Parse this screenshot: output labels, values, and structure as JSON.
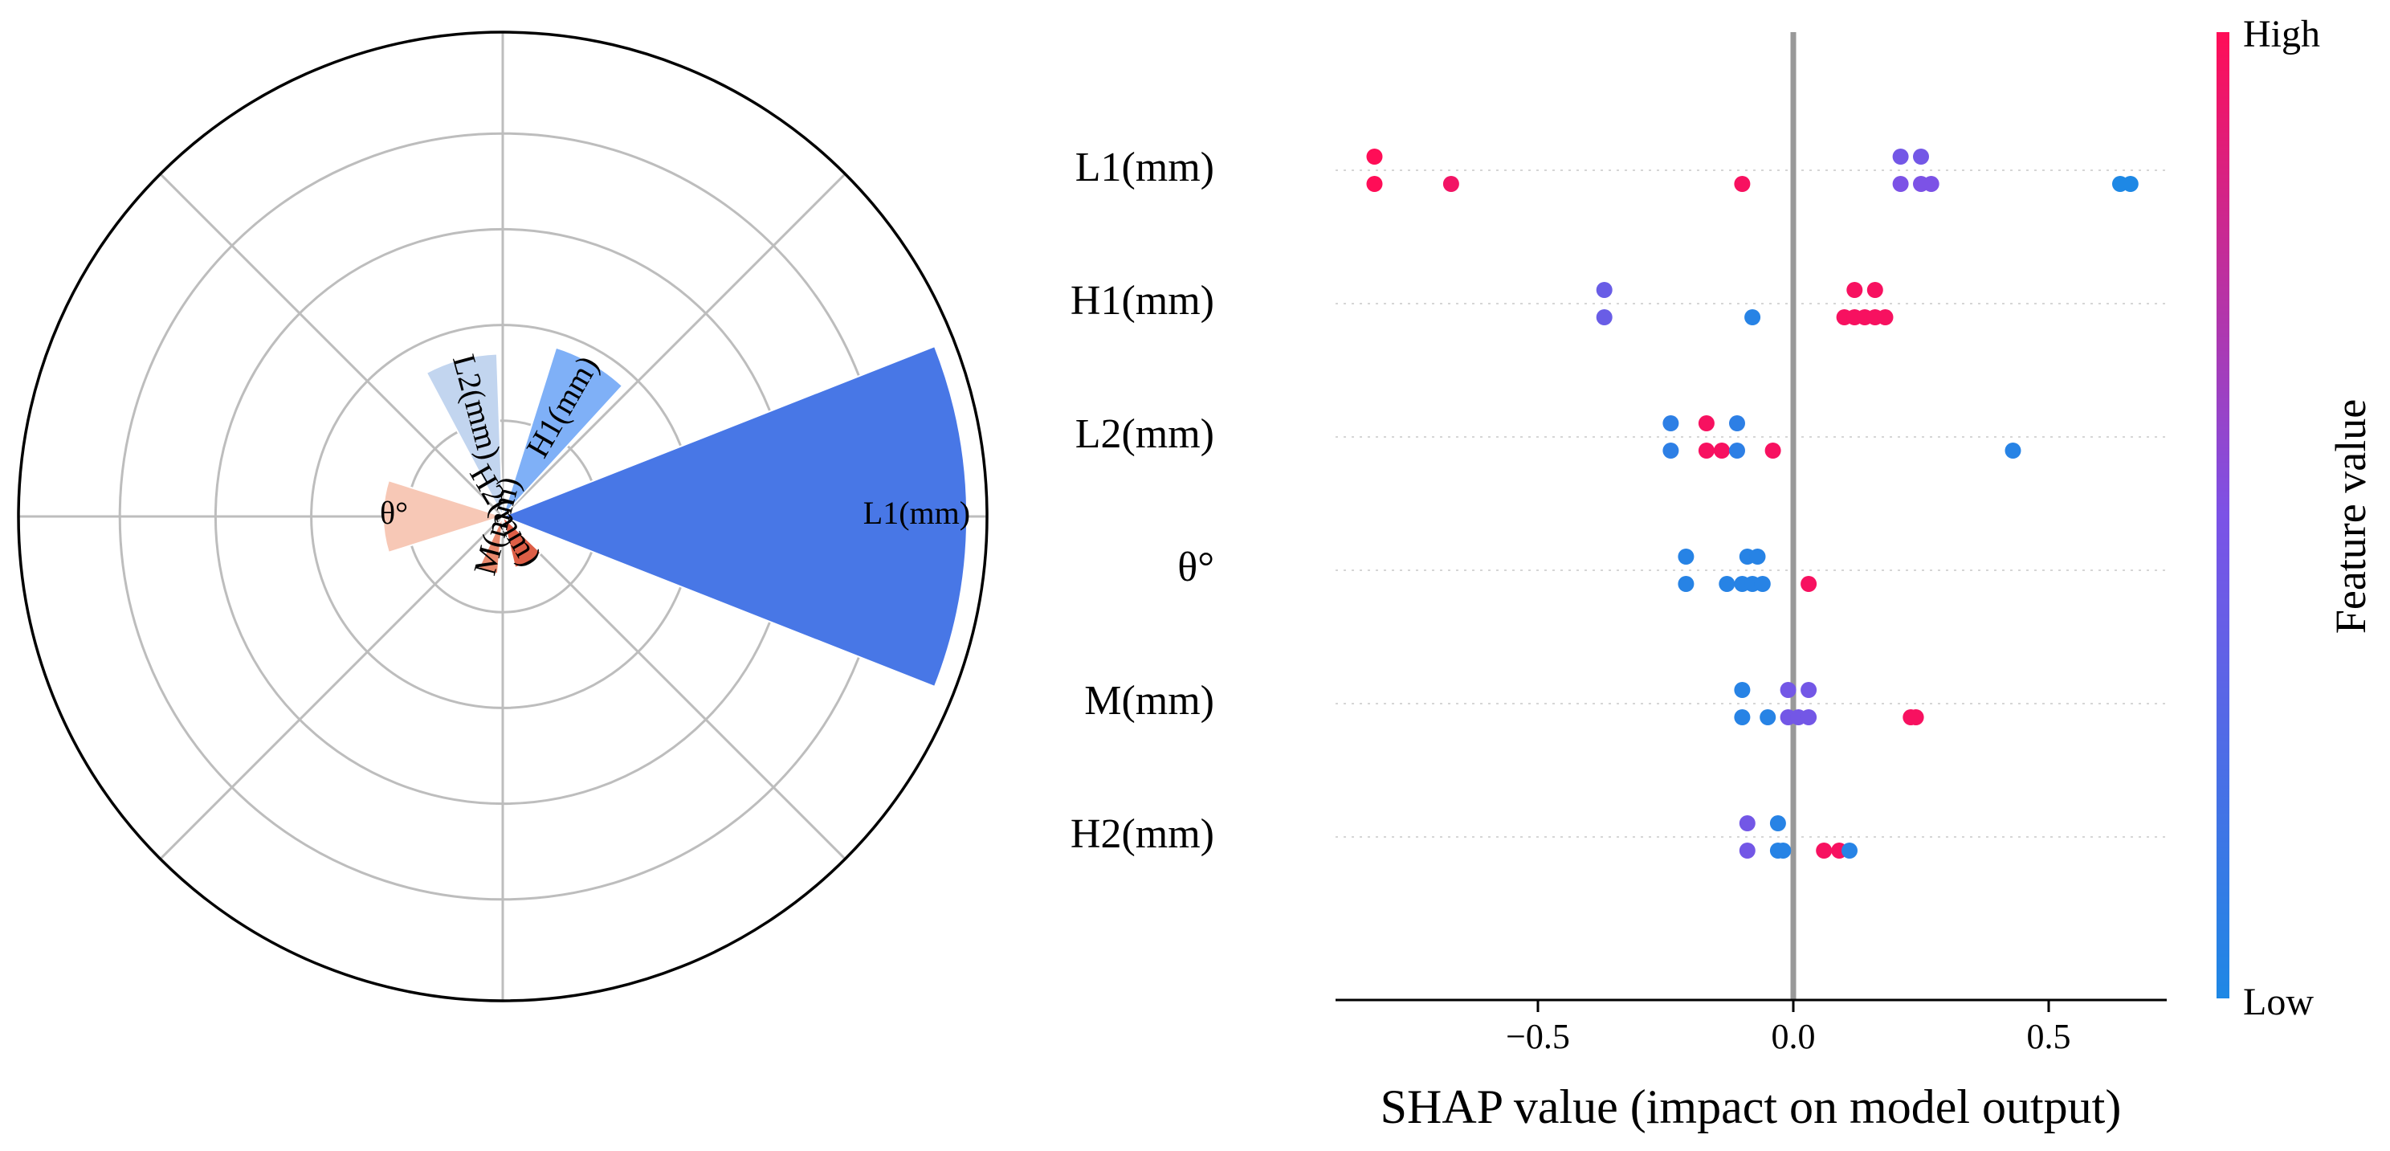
{
  "chart_data": [
    {
      "type": "polar-bar",
      "grid": true,
      "radial_max": 1.0,
      "radial_ticks": [
        0.2,
        0.4,
        0.6,
        0.8,
        1.0
      ],
      "spokes_deg": [
        0,
        45,
        90,
        135,
        180,
        225,
        270,
        315
      ],
      "categories": [
        "L1(mm)",
        "H2(mm)",
        "M(mm)",
        "θ°",
        "L2(mm)",
        "H1(mm)"
      ],
      "center_angle_deg": [
        0,
        300,
        255,
        180,
        105,
        60
      ],
      "width_deg": [
        43,
        33,
        20,
        35,
        26,
        25
      ],
      "values": [
        0.97,
        0.11,
        0.12,
        0.25,
        0.34,
        0.37
      ],
      "colors": [
        "#4877e6",
        "#dd5e46",
        "#e98a6e",
        "#f7c8b6",
        "#c2d5ef",
        "#7fb0f7"
      ]
    },
    {
      "type": "scatter",
      "title": "",
      "xlabel": "SHAP value (impact on model output)",
      "ylabel": "",
      "xlim": [
        -0.9,
        0.73
      ],
      "xticks": [
        -0.5,
        0.0,
        0.5
      ],
      "xtick_labels": [
        "−0.5",
        "0.0",
        "0.5"
      ],
      "grid": false,
      "categories": [
        "L1(mm)",
        "H1(mm)",
        "L2(mm)",
        "θ°",
        "M(mm)",
        "H2(mm)"
      ],
      "colorbar": {
        "label": "Feature value",
        "high": "High",
        "low": "Low",
        "colors": [
          "#ff0d57",
          "#7c52e6",
          "#1e88e5"
        ]
      },
      "series": [
        {
          "category": "L1(mm)",
          "points": [
            [
              -0.82,
              1,
              1.0
            ],
            [
              -0.82,
              -1,
              1.0
            ],
            [
              -0.67,
              -1,
              0.95
            ],
            [
              -0.1,
              -1,
              0.97
            ],
            [
              0.21,
              1,
              0.45
            ],
            [
              0.25,
              1,
              0.45
            ],
            [
              0.21,
              -1,
              0.5
            ],
            [
              0.25,
              -1,
              0.5
            ],
            [
              0.27,
              -1,
              0.5
            ],
            [
              0.64,
              -1,
              0.0
            ],
            [
              0.66,
              -1,
              0.0
            ]
          ]
        },
        {
          "category": "H1(mm)",
          "points": [
            [
              -0.37,
              1,
              0.4
            ],
            [
              -0.37,
              -1,
              0.4
            ],
            [
              -0.08,
              -1,
              0.05
            ],
            [
              0.12,
              1,
              0.97
            ],
            [
              0.16,
              1,
              0.97
            ],
            [
              0.1,
              -1,
              0.97
            ],
            [
              0.12,
              -1,
              0.97
            ],
            [
              0.14,
              -1,
              0.97
            ],
            [
              0.16,
              -1,
              0.97
            ],
            [
              0.18,
              -1,
              0.97
            ]
          ]
        },
        {
          "category": "L2(mm)",
          "points": [
            [
              -0.24,
              1,
              0.08
            ],
            [
              -0.17,
              1,
              0.97
            ],
            [
              -0.11,
              1,
              0.08
            ],
            [
              -0.24,
              -1,
              0.08
            ],
            [
              -0.17,
              -1,
              0.97
            ],
            [
              -0.14,
              -1,
              0.97
            ],
            [
              -0.11,
              -1,
              0.08
            ],
            [
              -0.04,
              -1,
              0.97
            ],
            [
              0.43,
              -1,
              0.05
            ]
          ]
        },
        {
          "category": "θ°",
          "points": [
            [
              -0.21,
              1,
              0.05
            ],
            [
              -0.09,
              1,
              0.05
            ],
            [
              -0.07,
              1,
              0.05
            ],
            [
              -0.21,
              -1,
              0.05
            ],
            [
              -0.13,
              -1,
              0.05
            ],
            [
              -0.1,
              -1,
              0.05
            ],
            [
              -0.08,
              -1,
              0.05
            ],
            [
              -0.06,
              -1,
              0.05
            ],
            [
              0.03,
              -1,
              0.97
            ]
          ]
        },
        {
          "category": "M(mm)",
          "points": [
            [
              -0.1,
              1,
              0.05
            ],
            [
              -0.01,
              1,
              0.45
            ],
            [
              0.03,
              1,
              0.45
            ],
            [
              -0.1,
              -1,
              0.05
            ],
            [
              -0.05,
              -1,
              0.05
            ],
            [
              -0.01,
              -1,
              0.45
            ],
            [
              0.01,
              -1,
              0.45
            ],
            [
              0.03,
              -1,
              0.45
            ],
            [
              0.23,
              -1,
              0.97
            ],
            [
              0.24,
              -1,
              0.97
            ]
          ]
        },
        {
          "category": "H2(mm)",
          "points": [
            [
              -0.09,
              1,
              0.45
            ],
            [
              -0.03,
              1,
              0.05
            ],
            [
              -0.09,
              -1,
              0.45
            ],
            [
              -0.03,
              -1,
              0.05
            ],
            [
              -0.02,
              -1,
              0.05
            ],
            [
              0.06,
              -1,
              0.97
            ],
            [
              0.09,
              -1,
              0.97
            ],
            [
              0.11,
              -1,
              0.05
            ]
          ]
        }
      ]
    }
  ]
}
